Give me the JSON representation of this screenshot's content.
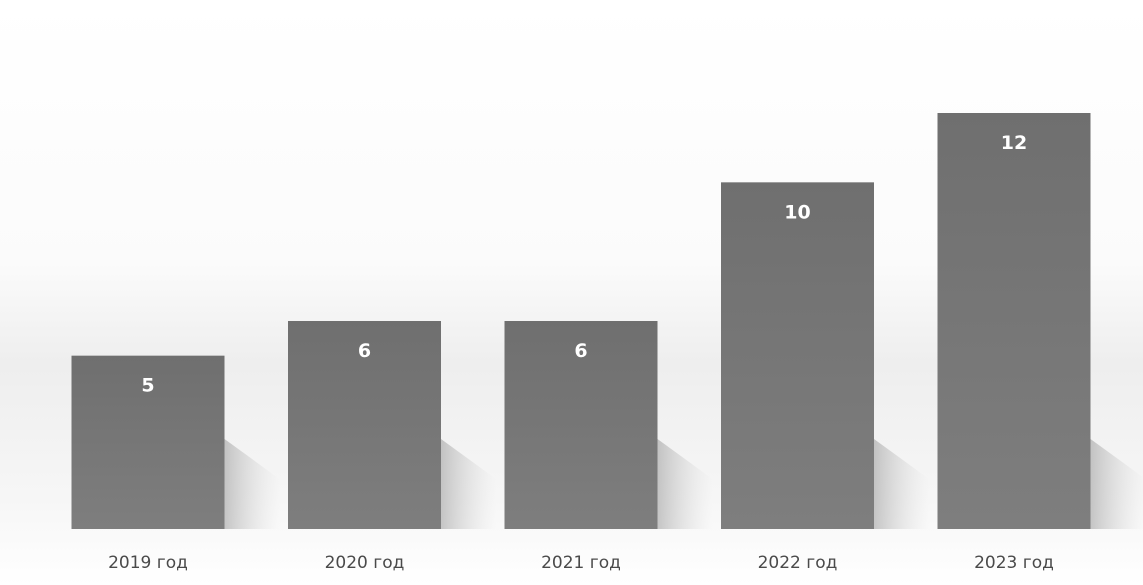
{
  "chart_data": {
    "type": "bar",
    "categories": [
      "2019 год",
      "2020 год",
      "2021 год",
      "2022 год",
      "2023 год"
    ],
    "values": [
      5,
      6,
      6,
      10,
      12
    ],
    "value_labels": [
      "5",
      "6",
      "6",
      "10",
      "12"
    ],
    "ylim": [
      0,
      12
    ],
    "grid": false,
    "legend": "none",
    "bar_color": "#7a7a7a",
    "label_color": "#ffffff",
    "axis_text_color": "#4a4a4a"
  }
}
